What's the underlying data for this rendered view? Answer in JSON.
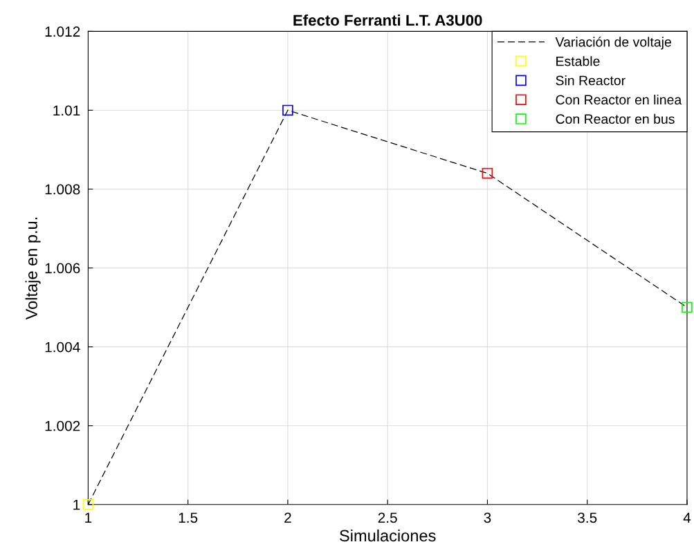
{
  "chart_data": {
    "type": "line",
    "title": "Efecto Ferranti L.T. A3U00",
    "xlabel": "Simulaciones",
    "ylabel": "Voltaje en p.u.",
    "series": [
      {
        "name": "Variación de voltaje",
        "color": "#000000",
        "line_style": "dashed",
        "marker": "none",
        "x": [
          1,
          2,
          3,
          4
        ],
        "values": [
          1.0,
          1.01,
          1.0084,
          1.005
        ]
      },
      {
        "name": "Estable",
        "type": "scatter",
        "color": "#ffff00",
        "marker": "square",
        "x": [
          1
        ],
        "values": [
          1.0
        ]
      },
      {
        "name": "Sin Reactor",
        "type": "scatter",
        "color": "#0000ff",
        "marker": "square",
        "x": [
          2
        ],
        "values": [
          1.01
        ]
      },
      {
        "name": "Con Reactor en linea",
        "type": "scatter",
        "color": "#ff0000",
        "marker": "square",
        "x": [
          3
        ],
        "values": [
          1.0084
        ]
      },
      {
        "name": "Con Reactor en bus",
        "type": "scatter",
        "color": "#00ff00",
        "marker": "square",
        "x": [
          4
        ],
        "values": [
          1.005
        ]
      }
    ],
    "xlim": [
      1,
      4
    ],
    "xticks": [
      1,
      1.5,
      2,
      2.5,
      3,
      3.5,
      4
    ],
    "ylim": [
      1,
      1.012
    ],
    "yticks": [
      1,
      1.002,
      1.004,
      1.006,
      1.008,
      1.01,
      1.012
    ],
    "grid": true,
    "legend": "top right"
  }
}
